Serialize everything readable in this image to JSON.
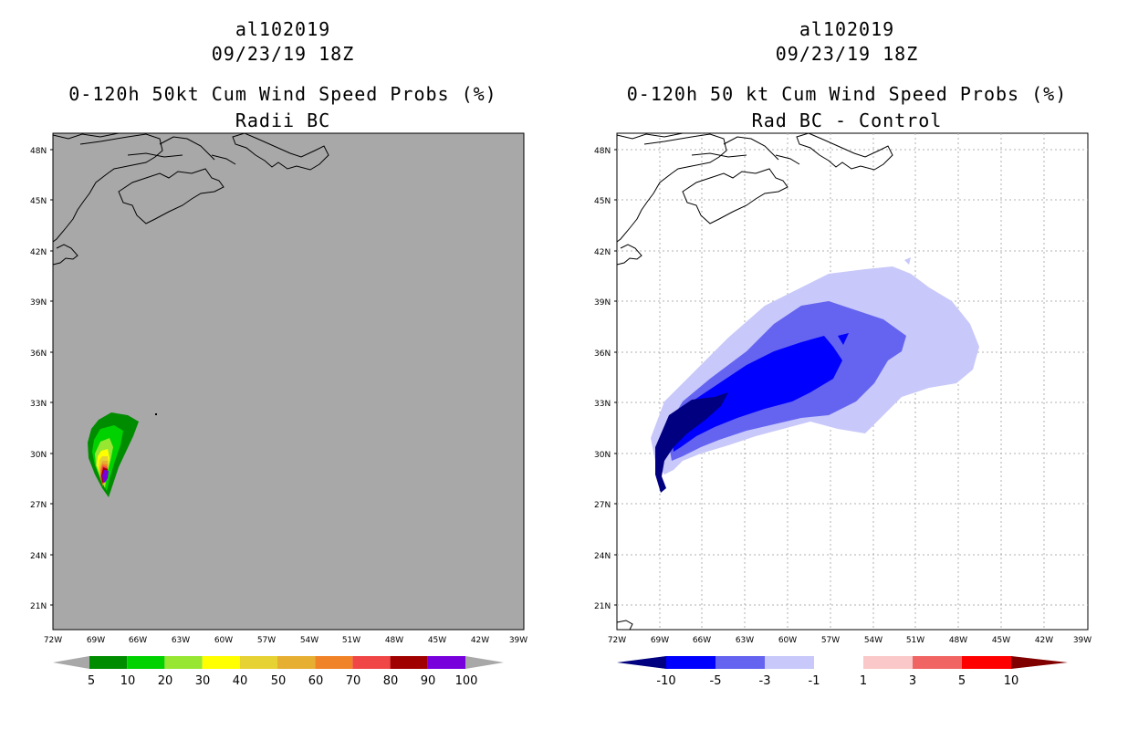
{
  "left": {
    "title1": "al102019",
    "title2": "09/23/19 18Z",
    "title3": "0-120h 50kt Cum Wind Speed Probs (%)",
    "title4": "Radii BC",
    "bg_color": "#a8a8a8",
    "legend_labels": [
      "5",
      "10",
      "20",
      "30",
      "40",
      "50",
      "60",
      "70",
      "80",
      "90",
      "100"
    ],
    "legend_colors": [
      "#008c00",
      "#00d200",
      "#96e632",
      "#ffff00",
      "#e6d232",
      "#e6af32",
      "#f08228",
      "#f04646",
      "#a00000",
      "#7800dc"
    ]
  },
  "right": {
    "title1": "al102019",
    "title2": "09/23/19 18Z",
    "title3": "0-120h 50 kt Cum Wind Speed Probs (%)",
    "title4": "Rad BC - Control",
    "legend_labels": [
      "-10",
      "-5",
      "-3",
      "-1",
      "1",
      "3",
      "5",
      "10"
    ],
    "legend_colors": [
      "#0000ff",
      "#6464f0",
      "#c8c8fa",
      "#ffffff",
      "#fac8c8",
      "#f06464",
      "#ff0000"
    ],
    "legend_end_left": "#000080",
    "legend_end_right": "#800000"
  },
  "axes": {
    "lon_labels": [
      "72W",
      "69W",
      "66W",
      "63W",
      "60W",
      "57W",
      "54W",
      "51W",
      "48W",
      "45W",
      "42W",
      "39W"
    ],
    "lat_labels": [
      "48N",
      "45N",
      "42N",
      "39N",
      "36N",
      "33N",
      "30N",
      "27N",
      "24N",
      "21N"
    ]
  }
}
